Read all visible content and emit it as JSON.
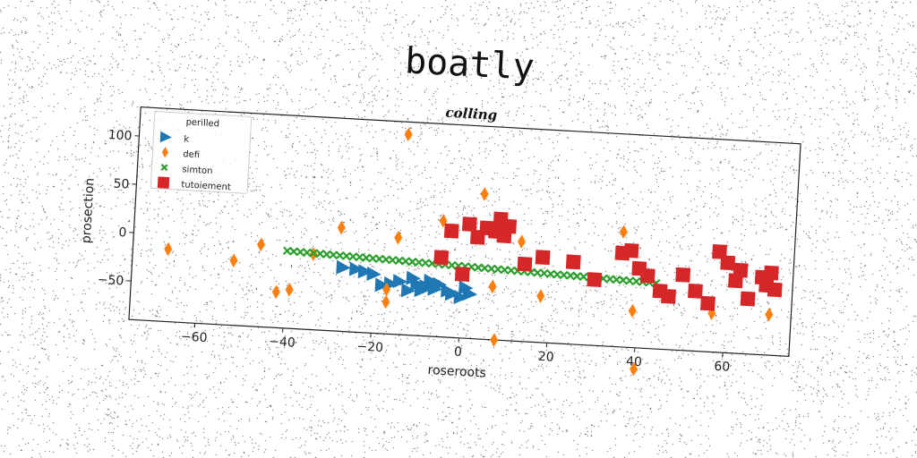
{
  "figure": {
    "title": "boatly"
  },
  "chart_data": {
    "type": "scatter",
    "title": "colling",
    "xlabel": "roseroots",
    "ylabel": "prosection",
    "xlim": [
      -75,
      75
    ],
    "ylim": [
      -90,
      130
    ],
    "xticks": [
      -60,
      -40,
      -20,
      0,
      20,
      40,
      60
    ],
    "xtick_labels": [
      "−60",
      "−40",
      "−20",
      "0",
      "20",
      "40",
      "60"
    ],
    "yticks": [
      -50,
      0,
      50,
      100
    ],
    "ytick_labels": [
      "−50",
      "0",
      "50",
      "100"
    ],
    "grid": false,
    "legend": {
      "title": "perilled",
      "placement": "top-left"
    },
    "series": [
      {
        "name": "k",
        "marker": "triangle-right",
        "color": "#1f77b4",
        "points": [
          [
            -27,
            -24
          ],
          [
            -24,
            -25
          ],
          [
            -22,
            -27
          ],
          [
            -20,
            -29
          ],
          [
            -18,
            -40
          ],
          [
            -16,
            -38
          ],
          [
            -14,
            -35
          ],
          [
            -12,
            -44
          ],
          [
            -11,
            -31
          ],
          [
            -10,
            -37
          ],
          [
            -9,
            -43
          ],
          [
            -8,
            -39
          ],
          [
            -7,
            -33
          ],
          [
            -6,
            -41
          ],
          [
            -5,
            -36
          ],
          [
            -3,
            -42
          ],
          [
            -2,
            -45
          ],
          [
            0,
            -48
          ],
          [
            1,
            -38
          ],
          [
            2,
            -44
          ]
        ]
      },
      {
        "name": "defi",
        "marker": "diamond",
        "color": "#ff7f0e",
        "points": [
          [
            -67,
            -15
          ],
          [
            -52,
            -23
          ],
          [
            -46,
            -5
          ],
          [
            -42,
            -53
          ],
          [
            -39,
            -50
          ],
          [
            -34,
            -12
          ],
          [
            -28,
            17
          ],
          [
            -17,
            -44
          ],
          [
            -17,
            -57
          ],
          [
            -15,
            10
          ],
          [
            -14,
            117
          ],
          [
            -5,
            30
          ],
          [
            4,
            60
          ],
          [
            7,
            -35
          ],
          [
            8,
            -90
          ],
          [
            13,
            13
          ],
          [
            18,
            -42
          ],
          [
            36,
            29
          ],
          [
            39,
            -52
          ],
          [
            40,
            -112
          ],
          [
            57,
            -50
          ],
          [
            70,
            -48
          ]
        ]
      },
      {
        "name": "simton",
        "marker": "x",
        "color": "#2ca02c",
        "x_from": -40,
        "x_to": 44,
        "x_step": 1.5,
        "y_at_x_from": -10,
        "y_at_x_to": -22
      },
      {
        "name": "tutoiement",
        "marker": "square",
        "color": "#d62728",
        "points": [
          [
            -5,
            -8
          ],
          [
            -3,
            20
          ],
          [
            0,
            -24
          ],
          [
            1,
            28
          ],
          [
            3,
            15
          ],
          [
            5,
            25
          ],
          [
            7,
            22
          ],
          [
            8,
            35
          ],
          [
            9,
            18
          ],
          [
            10,
            28
          ],
          [
            14,
            -10
          ],
          [
            18,
            -2
          ],
          [
            25,
            -5
          ],
          [
            30,
            -22
          ],
          [
            36,
            7
          ],
          [
            38,
            10
          ],
          [
            40,
            -8
          ],
          [
            42,
            -15
          ],
          [
            45,
            -30
          ],
          [
            47,
            -35
          ],
          [
            50,
            -12
          ],
          [
            53,
            -28
          ],
          [
            56,
            -40
          ],
          [
            58,
            14
          ],
          [
            60,
            3
          ],
          [
            62,
            -15
          ],
          [
            63,
            -4
          ],
          [
            65,
            -33
          ],
          [
            68,
            -10
          ],
          [
            69,
            -18
          ],
          [
            70,
            -5
          ],
          [
            71,
            -22
          ]
        ]
      }
    ]
  }
}
